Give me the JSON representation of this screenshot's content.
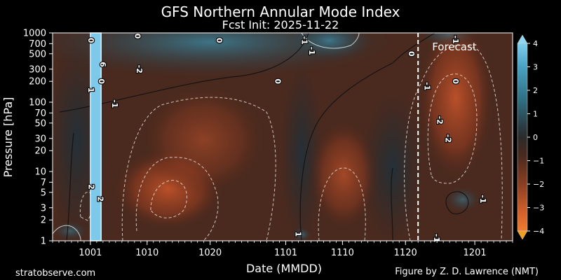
{
  "chart_data": {
    "type": "heatmap",
    "title": "GFS Northern Annular Mode Index",
    "subtitle": "Fcst Init: 2025-11-22",
    "xlabel": "Date (MMDD)",
    "ylabel": "Pressure [hPa]",
    "x_ticks": [
      "1001",
      "1010",
      "1020",
      "1101",
      "1110",
      "1120",
      "1201"
    ],
    "x_tick_days": [
      0,
      9,
      19,
      31,
      40,
      50,
      61
    ],
    "x_range_days": [
      -6,
      67
    ],
    "y_scale": "log",
    "y_range": [
      1000,
      1
    ],
    "y_ticks": [
      1,
      2,
      3,
      5,
      7,
      10,
      20,
      30,
      50,
      70,
      100,
      200,
      300,
      500,
      700,
      1000
    ],
    "forecast_start_day": 52,
    "forecast_label": "Forecast",
    "colorbar": {
      "range": [
        -4,
        4
      ],
      "ticks": [
        4,
        3,
        2,
        1,
        0,
        -1,
        -2,
        -3,
        -4
      ],
      "colors": {
        "positive": "#5bb4d8",
        "neutral": "#2b2b2b",
        "negative": "#e8702a"
      }
    },
    "highlight_band_days": [
      0,
      1.7
    ],
    "contour_labels": [
      {
        "text": "2",
        "day": 0.2,
        "p": 6
      },
      {
        "text": "2",
        "day": 1.6,
        "p": 4
      },
      {
        "text": "1",
        "day": 0.1,
        "p": 150
      },
      {
        "text": "0",
        "day": 1.8,
        "p": 200
      },
      {
        "text": "6",
        "day": 2.0,
        "p": 350
      },
      {
        "text": "0",
        "day": 0.1,
        "p": 780
      },
      {
        "text": "-1",
        "day": 3.9,
        "p": 95
      },
      {
        "text": "-2",
        "day": 7.8,
        "p": 300
      },
      {
        "text": "0",
        "day": 7.5,
        "p": 900
      },
      {
        "text": "0",
        "day": 20.5,
        "p": 780
      },
      {
        "text": "1",
        "day": 33.0,
        "p": 1.25
      },
      {
        "text": "0",
        "day": 29.8,
        "p": 200
      },
      {
        "text": "-1",
        "day": 34.0,
        "p": 780
      },
      {
        "text": "-1",
        "day": 35.2,
        "p": 550
      },
      {
        "text": "0",
        "day": 51.0,
        "p": 500
      },
      {
        "text": "-1",
        "day": 55.0,
        "p": 1.1
      },
      {
        "text": "-2",
        "day": 56.8,
        "p": 30
      },
      {
        "text": "-2",
        "day": 55.5,
        "p": 55
      },
      {
        "text": "-1",
        "day": 53.5,
        "p": 170
      },
      {
        "text": "0",
        "day": 58.0,
        "p": 200
      },
      {
        "text": "-1",
        "day": 62.3,
        "p": 4
      },
      {
        "text": "-1",
        "day": 58.0,
        "p": 800
      }
    ]
  },
  "footer": {
    "left": "stratobserve.com",
    "right": "Figure by Z. D. Lawrence (NMT)"
  }
}
